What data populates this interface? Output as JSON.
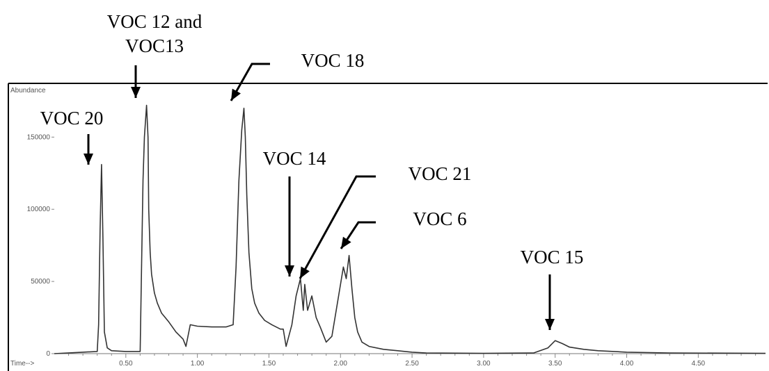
{
  "chart_data": {
    "type": "line",
    "ylabel": "Abundance",
    "xlabel": "Time-->",
    "xlim": [
      0.0,
      4.97
    ],
    "ylim": [
      0,
      180000
    ],
    "x_ticks": [
      0.5,
      1.0,
      1.5,
      2.0,
      2.5,
      3.0,
      3.5,
      4.0,
      4.5
    ],
    "x_tick_labels": [
      "0.50",
      "1.00",
      "1.50",
      "2.00",
      "2.50",
      "3.00",
      "3.50",
      "4.00",
      "4.50"
    ],
    "y_ticks": [
      0,
      50000,
      100000,
      150000
    ],
    "y_tick_labels": [
      "0",
      "50000",
      "100000",
      "150000"
    ],
    "grid": false,
    "series": [
      {
        "x": [
          0.0,
          0.2,
          0.3,
          0.31,
          0.32,
          0.33,
          0.34,
          0.35,
          0.37,
          0.4,
          0.5,
          0.6,
          0.61,
          0.62,
          0.63,
          0.645,
          0.655,
          0.66,
          0.67,
          0.68,
          0.7,
          0.72,
          0.75,
          0.8,
          0.85,
          0.9,
          0.92,
          0.95,
          1.0,
          1.1,
          1.2,
          1.25,
          1.27,
          1.29,
          1.31,
          1.325,
          1.335,
          1.345,
          1.36,
          1.38,
          1.4,
          1.43,
          1.47,
          1.52,
          1.58,
          1.6,
          1.62,
          1.66,
          1.69,
          1.72,
          1.74,
          1.75,
          1.77,
          1.8,
          1.83,
          1.86,
          1.9,
          1.94,
          1.97,
          2.0,
          2.02,
          2.04,
          2.06,
          2.08,
          2.1,
          2.12,
          2.15,
          2.2,
          2.3,
          2.4,
          2.5,
          2.6,
          3.0,
          3.35,
          3.45,
          3.5,
          3.55,
          3.6,
          3.7,
          3.8,
          4.0,
          4.3,
          4.97
        ],
        "y": [
          0,
          1000,
          1500,
          20000,
          85000,
          131000,
          80000,
          15000,
          4000,
          2000,
          1500,
          1500,
          60000,
          120000,
          150000,
          172000,
          150000,
          100000,
          70000,
          55000,
          42000,
          35000,
          28000,
          22000,
          15000,
          10000,
          5000,
          20000,
          19000,
          18500,
          18500,
          20000,
          60000,
          120000,
          155000,
          170000,
          150000,
          110000,
          70000,
          45000,
          35000,
          28000,
          23000,
          20000,
          17000,
          17000,
          5000,
          20000,
          40000,
          52000,
          30000,
          48000,
          30000,
          40000,
          25000,
          18000,
          8000,
          12000,
          30000,
          48000,
          60000,
          52000,
          68000,
          45000,
          25000,
          15000,
          8000,
          5000,
          3000,
          2000,
          1000,
          500,
          200,
          500,
          4000,
          9000,
          7000,
          4500,
          3000,
          2000,
          1000,
          500,
          200
        ]
      }
    ],
    "annotations": [
      {
        "lines": [
          "VOC 20"
        ],
        "x": 0.33,
        "y": 131000
      },
      {
        "lines": [
          "VOC 12 and",
          "VOC13"
        ],
        "x": 0.655,
        "y": 172000
      },
      {
        "lines": [
          "VOC 18"
        ],
        "x": 1.335,
        "y": 170000
      },
      {
        "lines": [
          "VOC 14"
        ],
        "x": 1.72,
        "y": 52000
      },
      {
        "lines": [
          "VOC 21"
        ],
        "x": 1.77,
        "y": 46000
      },
      {
        "lines": [
          "VOC 6"
        ],
        "x": 2.06,
        "y": 68000
      },
      {
        "lines": [
          "VOC 15"
        ],
        "x": 3.52,
        "y": 9500
      }
    ]
  }
}
